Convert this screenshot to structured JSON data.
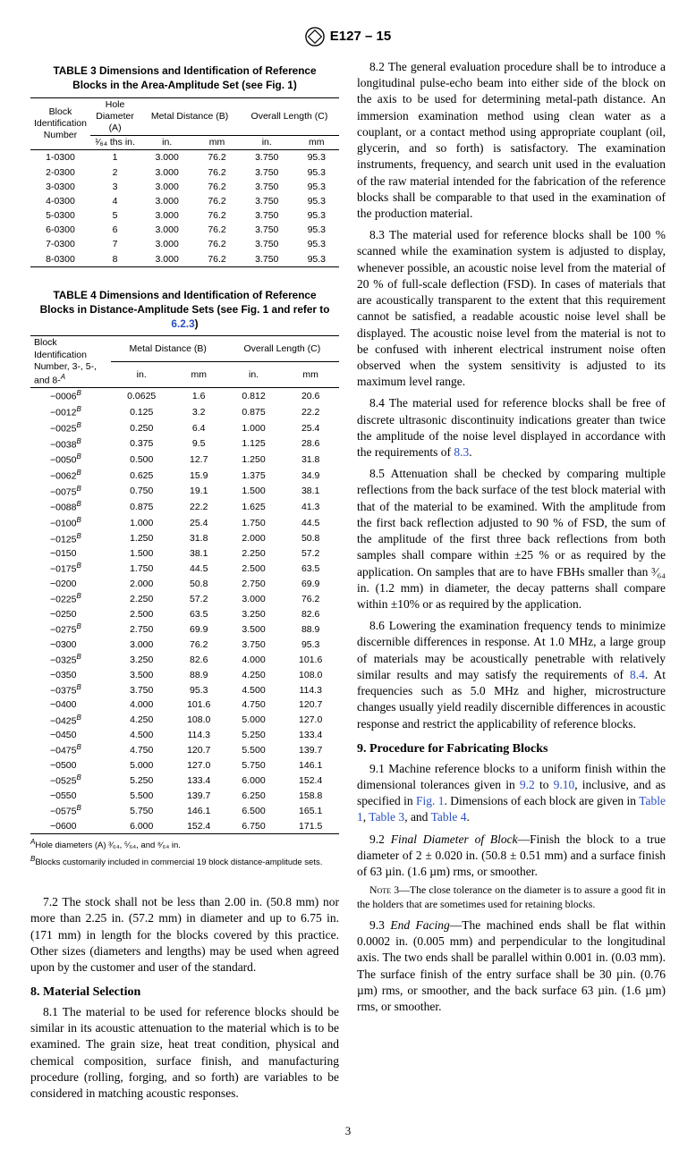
{
  "spec_id": "E127 – 15",
  "table3": {
    "title": "TABLE 3 Dimensions and Identification of Reference Blocks in the Area-Amplitude Set (see Fig. 1)",
    "h_id": "Block Identification Number",
    "h_A": "Hole Diameter (A)",
    "h_B": "Metal Distance (B)",
    "h_C": "Overall Length (C)",
    "h_A2": "¹⁄₆₄ ths in.",
    "h_in": "in.",
    "h_mm": "mm",
    "rows": [
      {
        "id": "1-0300",
        "a": "1",
        "bin": "3.000",
        "bmm": "76.2",
        "cin": "3.750",
        "cmm": "95.3"
      },
      {
        "id": "2-0300",
        "a": "2",
        "bin": "3.000",
        "bmm": "76.2",
        "cin": "3.750",
        "cmm": "95.3"
      },
      {
        "id": "3-0300",
        "a": "3",
        "bin": "3.000",
        "bmm": "76.2",
        "cin": "3.750",
        "cmm": "95.3"
      },
      {
        "id": "4-0300",
        "a": "4",
        "bin": "3.000",
        "bmm": "76.2",
        "cin": "3.750",
        "cmm": "95.3"
      },
      {
        "id": "5-0300",
        "a": "5",
        "bin": "3.000",
        "bmm": "76.2",
        "cin": "3.750",
        "cmm": "95.3"
      },
      {
        "id": "6-0300",
        "a": "6",
        "bin": "3.000",
        "bmm": "76.2",
        "cin": "3.750",
        "cmm": "95.3"
      },
      {
        "id": "7-0300",
        "a": "7",
        "bin": "3.000",
        "bmm": "76.2",
        "cin": "3.750",
        "cmm": "95.3"
      },
      {
        "id": "8-0300",
        "a": "8",
        "bin": "3.000",
        "bmm": "76.2",
        "cin": "3.750",
        "cmm": "95.3"
      }
    ]
  },
  "table4": {
    "title_a": "TABLE 4 Dimensions and Identification of Reference Blocks in Distance-Amplitude Sets (see Fig. 1 and refer to ",
    "title_link": "6.2.3",
    "title_b": ")",
    "h_id_a": "Block Identification Number, 3-, 5-, and 8-",
    "h_B": "Metal Distance (B)",
    "h_C": "Overall Length (C)",
    "h_in": "in.",
    "h_mm": "mm",
    "rows": [
      {
        "id": "−0006",
        "b": "B",
        "bin": "0.0625",
        "bmm": "1.6",
        "cin": "0.812",
        "cmm": "20.6"
      },
      {
        "id": "−0012",
        "b": "B",
        "bin": "0.125",
        "bmm": "3.2",
        "cin": "0.875",
        "cmm": "22.2"
      },
      {
        "id": "−0025",
        "b": "B",
        "bin": "0.250",
        "bmm": "6.4",
        "cin": "1.000",
        "cmm": "25.4"
      },
      {
        "id": "−0038",
        "b": "B",
        "bin": "0.375",
        "bmm": "9.5",
        "cin": "1.125",
        "cmm": "28.6"
      },
      {
        "id": "−0050",
        "b": "B",
        "bin": "0.500",
        "bmm": "12.7",
        "cin": "1.250",
        "cmm": "31.8"
      },
      {
        "id": "−0062",
        "b": "B",
        "bin": "0.625",
        "bmm": "15.9",
        "cin": "1.375",
        "cmm": "34.9"
      },
      {
        "id": "−0075",
        "b": "B",
        "bin": "0.750",
        "bmm": "19.1",
        "cin": "1.500",
        "cmm": "38.1"
      },
      {
        "id": "−0088",
        "b": "B",
        "bin": "0.875",
        "bmm": "22.2",
        "cin": "1.625",
        "cmm": "41.3"
      },
      {
        "id": "−0100",
        "b": "B",
        "bin": "1.000",
        "bmm": "25.4",
        "cin": "1.750",
        "cmm": "44.5"
      },
      {
        "id": "−0125",
        "b": "B",
        "bin": "1.250",
        "bmm": "31.8",
        "cin": "2.000",
        "cmm": "50.8"
      },
      {
        "id": "−0150",
        "b": "",
        "bin": "1.500",
        "bmm": "38.1",
        "cin": "2.250",
        "cmm": "57.2"
      },
      {
        "id": "−0175",
        "b": "B",
        "bin": "1.750",
        "bmm": "44.5",
        "cin": "2.500",
        "cmm": "63.5"
      },
      {
        "id": "−0200",
        "b": "",
        "bin": "2.000",
        "bmm": "50.8",
        "cin": "2.750",
        "cmm": "69.9"
      },
      {
        "id": "−0225",
        "b": "B",
        "bin": "2.250",
        "bmm": "57.2",
        "cin": "3.000",
        "cmm": "76.2"
      },
      {
        "id": "−0250",
        "b": "",
        "bin": "2.500",
        "bmm": "63.5",
        "cin": "3.250",
        "cmm": "82.6"
      },
      {
        "id": "−0275",
        "b": "B",
        "bin": "2.750",
        "bmm": "69.9",
        "cin": "3.500",
        "cmm": "88.9"
      },
      {
        "id": "−0300",
        "b": "",
        "bin": "3.000",
        "bmm": "76.2",
        "cin": "3.750",
        "cmm": "95.3"
      },
      {
        "id": "−0325",
        "b": "B",
        "bin": "3.250",
        "bmm": "82.6",
        "cin": "4.000",
        "cmm": "101.6"
      },
      {
        "id": "−0350",
        "b": "",
        "bin": "3.500",
        "bmm": "88.9",
        "cin": "4.250",
        "cmm": "108.0"
      },
      {
        "id": "−0375",
        "b": "B",
        "bin": "3.750",
        "bmm": "95.3",
        "cin": "4.500",
        "cmm": "114.3"
      },
      {
        "id": "−0400",
        "b": "",
        "bin": "4.000",
        "bmm": "101.6",
        "cin": "4.750",
        "cmm": "120.7"
      },
      {
        "id": "−0425",
        "b": "B",
        "bin": "4.250",
        "bmm": "108.0",
        "cin": "5.000",
        "cmm": "127.0"
      },
      {
        "id": "−0450",
        "b": "",
        "bin": "4.500",
        "bmm": "114.3",
        "cin": "5.250",
        "cmm": "133.4"
      },
      {
        "id": "−0475",
        "b": "B",
        "bin": "4.750",
        "bmm": "120.7",
        "cin": "5.500",
        "cmm": "139.7"
      },
      {
        "id": "−0500",
        "b": "",
        "bin": "5.000",
        "bmm": "127.0",
        "cin": "5.750",
        "cmm": "146.1"
      },
      {
        "id": "−0525",
        "b": "B",
        "bin": "5.250",
        "bmm": "133.4",
        "cin": "6.000",
        "cmm": "152.4"
      },
      {
        "id": "−0550",
        "b": "",
        "bin": "5.500",
        "bmm": "139.7",
        "cin": "6.250",
        "cmm": "158.8"
      },
      {
        "id": "−0575",
        "b": "B",
        "bin": "5.750",
        "bmm": "146.1",
        "cin": "6.500",
        "cmm": "165.1"
      },
      {
        "id": "−0600",
        "b": "",
        "bin": "6.000",
        "bmm": "152.4",
        "cin": "6.750",
        "cmm": "171.5"
      }
    ],
    "fnA": "Hole diameters (A) ³⁄₆₄, ⁵⁄₆₄, and ⁸⁄₆₄ in.",
    "fnB": "Blocks customarily included in commercial 19 block distance-amplitude sets."
  },
  "left_txt": {
    "p72": "7.2 The stock shall not be less than 2.00 in. (50.8 mm) nor more than 2.25 in. (57.2 mm) in diameter and up to 6.75 in. (171 mm) in length for the blocks covered by this practice. Other sizes (diameters and lengths) may be used when agreed upon by the customer and user of the standard.",
    "h8": "8. Material Selection",
    "p81": "8.1 The material to be used for reference blocks should be similar in its acoustic attenuation to the material which is to be examined. The grain size, heat treat condition, physical and chemical composition, surface finish, and manufacturing procedure (rolling, forging, and so forth) are variables to be considered in matching acoustic responses."
  },
  "right_txt": {
    "p82": "8.2 The general evaluation procedure shall be to introduce a longitudinal pulse-echo beam into either side of the block on the axis to be used for determining metal-path distance. An immersion examination method using clean water as a couplant, or a contact method using appropriate couplant (oil, glycerin, and so forth) is satisfactory. The examination instruments, frequency, and search unit used in the evaluation of the raw material intended for the fabrication of the reference blocks shall be comparable to that used in the examination of the production material.",
    "p83": "8.3 The material used for reference blocks shall be 100 % scanned while the examination system is adjusted to display, whenever possible, an acoustic noise level from the material of 20 % of full-scale deflection (FSD). In cases of materials that are acoustically transparent to the extent that this requirement cannot be satisfied, a readable acoustic noise level shall be displayed. The acoustic noise level from the material is not to be confused with inherent electrical instrument noise often observed when the system sensitivity is adjusted to its maximum level range.",
    "p84_a": "8.4 The material used for reference blocks shall be free of discrete ultrasonic discontinuity indications greater than twice the amplitude of the noise level displayed in accordance with the requirements of ",
    "p84_link": "8.3",
    "p84_b": ".",
    "p85": "8.5 Attenuation shall be checked by comparing multiple reflections from the back surface of the test block material with that of the material to be examined. With the amplitude from the first back reflection adjusted to 90 % of FSD, the sum of the amplitude of the first three back reflections from both samples shall compare within ±25 % or as required by the application. On samples that are to have FBHs smaller than ³⁄₆₄ in. (1.2 mm) in diameter, the decay patterns shall compare within ±10% or as required by the application.",
    "p86_a": "8.6 Lowering the examination frequency tends to minimize discernible differences in response. At 1.0 MHz, a large group of materials may be acoustically penetrable with relatively similar results and may satisfy the requirements of ",
    "p86_link": "8.4",
    "p86_b": ". At frequencies such as 5.0 MHz and higher, microstructure changes usually yield readily discernible differences in acoustic response and restrict the applicability of reference blocks.",
    "h9": "9. Procedure for Fabricating Blocks",
    "p91_a": "9.1 Machine reference blocks to a uniform finish within the dimensional tolerances given in ",
    "p91_l1": "9.2",
    "p91_mid1": " to ",
    "p91_l2": "9.10",
    "p91_mid2": ", inclusive, and as specified in ",
    "p91_l3": "Fig. 1",
    "p91_mid3": ". Dimensions of each block are given in ",
    "p91_l4": "Table 1",
    "p91_mid4": ", ",
    "p91_l5": "Table 3",
    "p91_mid5": ", and ",
    "p91_l6": "Table 4",
    "p91_end": ".",
    "p92": "9.2 Final Diameter of Block—Finish the block to a true diameter of 2 ± 0.020 in. (50.8 ± 0.51 mm) and a surface finish of 63 µin. (1.6 µm) rms, or smoother.",
    "p92_head": "Final Diameter of Block",
    "p92_body": "—Finish the block to a true diameter of 2 ± 0.020 in. (50.8 ± 0.51 mm) and a surface finish of 63 µin. (1.6 µm) rms, or smoother.",
    "note3_label": "Note 3—",
    "note3": "The close tolerance on the diameter is to assure a good fit in the holders that are sometimes used for retaining blocks.",
    "p93_head": "End Facing",
    "p93_body": "—The machined ends shall be flat within 0.0002 in. (0.005 mm) and perpendicular to the longitudinal axis. The two ends shall be parallel within 0.001 in. (0.03 mm). The surface finish of the entry surface shall be 30 µin. (0.76 µm) rms, or smoother, and the back surface 63 µin. (1.6 µm) rms, or smoother."
  },
  "page": "3"
}
